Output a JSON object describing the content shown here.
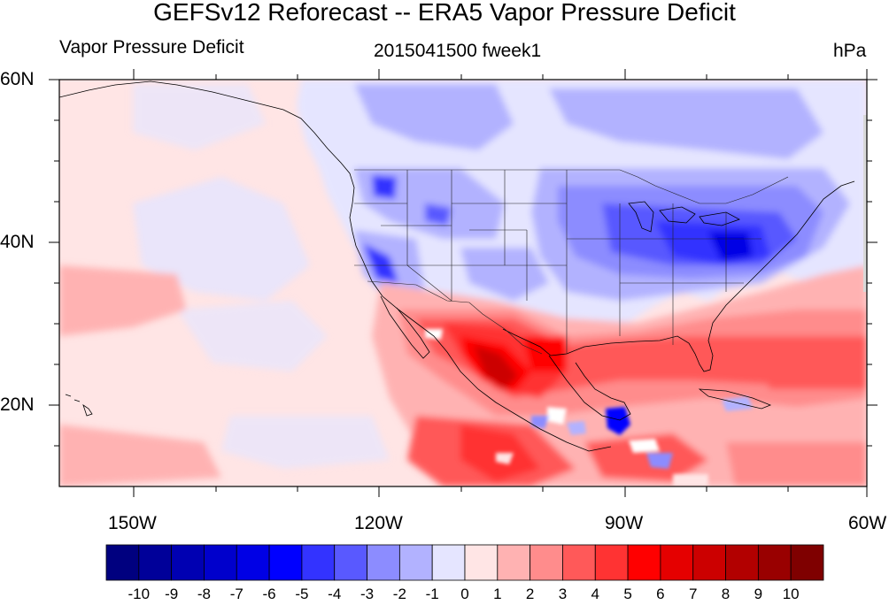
{
  "header": {
    "title": "GEFSv12 Reforecast -- ERA5 Vapor Pressure Deficit",
    "left_string": "Vapor Pressure Deficit",
    "center_string": "2015041500 fweek1",
    "right_string": "hPa"
  },
  "map": {
    "projection": "cylindrical-equidistant",
    "lon_range": [
      -160,
      -60
    ],
    "lat_range": [
      10,
      60
    ],
    "x_tick_labels": [
      "150W",
      "120W",
      "90W",
      "60W"
    ],
    "y_tick_labels": [
      "60N",
      "40N",
      "20N"
    ],
    "field": "vapor-pressure-deficit difference",
    "units": "hPa"
  },
  "colorbar": {
    "labels": [
      "-10",
      "-9",
      "-8",
      "-7",
      "-6",
      "-5",
      "-4",
      "-3",
      "-2",
      "-1",
      "0",
      "1",
      "2",
      "3",
      "4",
      "5",
      "6",
      "7",
      "8",
      "9",
      "10"
    ],
    "colors": [
      "#00007f",
      "#000099",
      "#0000b2",
      "#0000cc",
      "#0000e5",
      "#0000ff",
      "#3333ff",
      "#5959ff",
      "#8c8cff",
      "#b2b2ff",
      "#e5e5ff",
      "#ffe5e5",
      "#ffb2b2",
      "#ff8c8c",
      "#ff5959",
      "#ff3333",
      "#ff0000",
      "#e50000",
      "#cc0000",
      "#b20000",
      "#990000",
      "#7f0000"
    ]
  }
}
